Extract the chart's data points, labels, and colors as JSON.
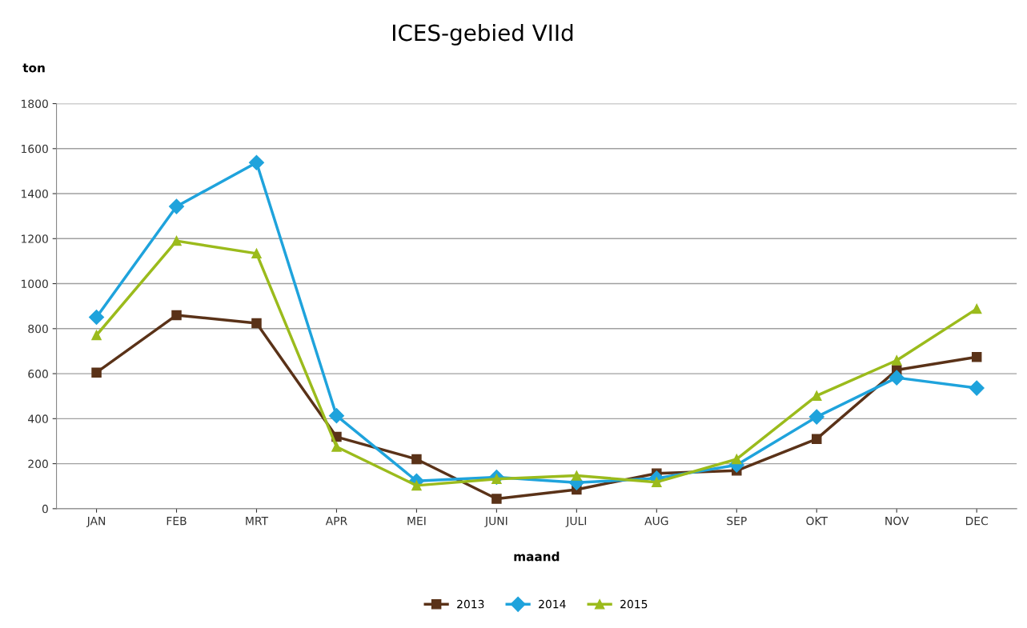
{
  "chart_data": {
    "type": "line",
    "title": "ICES-gebied VIId",
    "ylabel": "ton",
    "xlabel": "maand",
    "categories": [
      "JAN",
      "FEB",
      "MRT",
      "APR",
      "MEI",
      "JUNI",
      "JULI",
      "AUG",
      "SEP",
      "OKT",
      "NOV",
      "DEC"
    ],
    "series": [
      {
        "name": "2013",
        "color": "#5a3218",
        "marker": "square",
        "values": [
          605,
          860,
          824,
          319,
          220,
          44,
          85,
          157,
          169,
          310,
          616,
          674
        ]
      },
      {
        "name": "2014",
        "color": "#1fa3dc",
        "marker": "diamond",
        "values": [
          851,
          1343,
          1538,
          413,
          123,
          140,
          116,
          135,
          194,
          408,
          582,
          536
        ]
      },
      {
        "name": "2015",
        "color": "#9bbb1c",
        "marker": "triangle",
        "values": [
          771,
          1190,
          1134,
          275,
          103,
          132,
          147,
          118,
          220,
          502,
          659,
          888
        ]
      }
    ],
    "ylim": [
      0,
      1800
    ],
    "yticks": [
      0,
      200,
      400,
      600,
      800,
      1000,
      1200,
      1400,
      1600,
      1800
    ],
    "grid": "y",
    "legend": "bottom"
  }
}
